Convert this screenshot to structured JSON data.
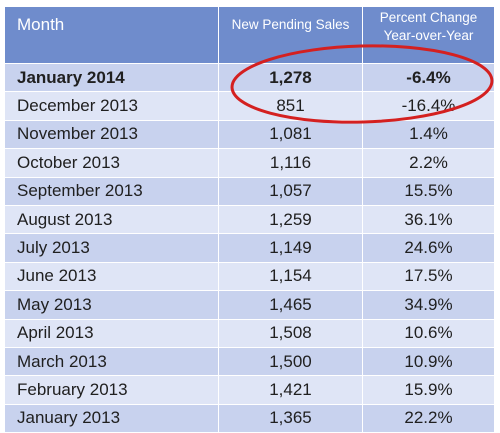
{
  "headers": {
    "month": "Month",
    "pending": "New Pending Sales",
    "change_line1": "Percent Change",
    "change_line2": "Year-over-Year"
  },
  "rows": [
    {
      "month": "January 2014",
      "pending": "1,278",
      "change": "-6.4%"
    },
    {
      "month": "December 2013",
      "pending": "851",
      "change": "-16.4%"
    },
    {
      "month": "November 2013",
      "pending": "1,081",
      "change": "1.4%"
    },
    {
      "month": "October 2013",
      "pending": "1,116",
      "change": "2.2%"
    },
    {
      "month": "September 2013",
      "pending": "1,057",
      "change": "15.5%"
    },
    {
      "month": "August 2013",
      "pending": "1,259",
      "change": "36.1%"
    },
    {
      "month": "July 2013",
      "pending": "1,149",
      "change": "24.6%"
    },
    {
      "month": "June 2013",
      "pending": "1,154",
      "change": "17.5%"
    },
    {
      "month": "May 2013",
      "pending": "1,465",
      "change": "34.9%"
    },
    {
      "month": "April 2013",
      "pending": "1,508",
      "change": "10.6%"
    },
    {
      "month": "March 2013",
      "pending": "1,500",
      "change": "10.9%"
    },
    {
      "month": "February 2013",
      "pending": "1,421",
      "change": "15.9%"
    },
    {
      "month": "January 2013",
      "pending": "1,365",
      "change": "22.2%"
    }
  ],
  "colors": {
    "header_bg": "#6f8ccc",
    "row_dark": "#c8d2ee",
    "row_light": "#dfe5f6",
    "highlight_circle": "#d42020"
  }
}
